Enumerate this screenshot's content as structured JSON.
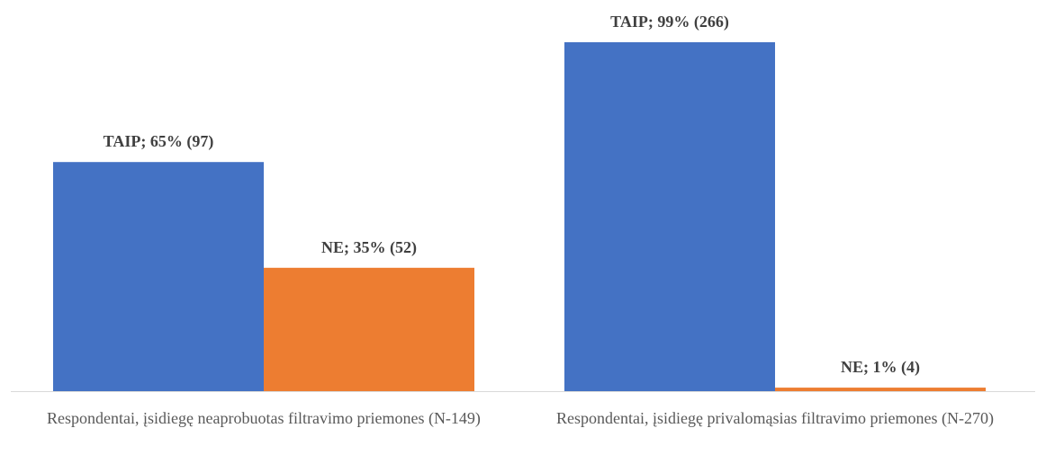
{
  "chart_data": {
    "type": "bar",
    "categories": [
      "Respondentai, įsidiegę neaprobuotas filtravimo priemones (N-149)",
      "Respondentai, įsidiegę privalomąsias filtravimo priemones (N-270)"
    ],
    "series": [
      {
        "color": "#4472c4",
        "values": [
          65,
          99
        ],
        "value_labels": [
          "TAIP; 65% (97)",
          "TAIP; 99% (266)"
        ]
      },
      {
        "color": "#ed7d31",
        "values": [
          35,
          1
        ],
        "value_labels": [
          "NE; 35% (52)",
          "NE; 1% (4)"
        ]
      }
    ]
  }
}
